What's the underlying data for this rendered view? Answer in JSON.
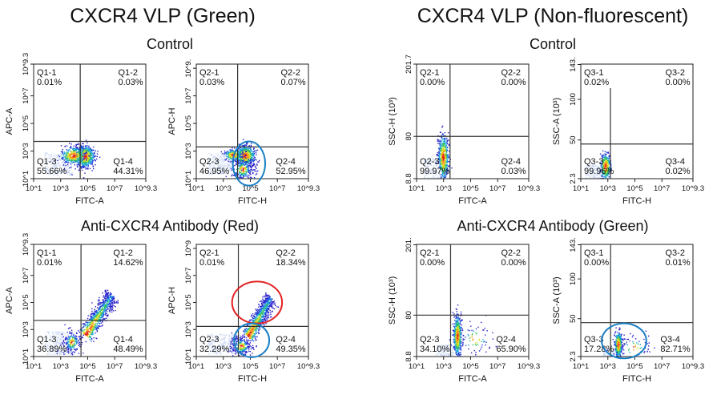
{
  "figure": {
    "left_title": "CXCR4 VLP (Green)",
    "right_title": "CXCR4 VLP (Non-fluorescent)",
    "row1_left_sub": "Control",
    "row1_right_sub": "Control",
    "row2_left_sub": "Anti-CXCR4 Antibody (Red)",
    "row2_right_sub": "Anti-CXCR4 Antibody (Green)"
  },
  "chart_data": [
    {
      "type": "scatter",
      "xlabel": "FITC-A",
      "ylabel": "APC-A",
      "xscale": "log",
      "yscale": "log",
      "xlim": [
        10,
        1995262315
      ],
      "ylim": [
        10,
        1995262315
      ],
      "x_ticks": [
        "10^1",
        "10^3",
        "10^5",
        "10^7",
        "10^9.3"
      ],
      "y_ticks": [
        "10^1",
        "10^3",
        "10^5",
        "10^7",
        "10^9.3"
      ],
      "x_gate": 28000,
      "y_gate": 5000,
      "quadrants": [
        {
          "label": "Q1-1",
          "pct": "0.01%"
        },
        {
          "label": "Q1-2",
          "pct": "0.03%"
        },
        {
          "label": "Q1-3",
          "pct": "55.66%"
        },
        {
          "label": "Q1-4",
          "pct": "44.31%"
        }
      ],
      "annotations": []
    },
    {
      "type": "scatter",
      "xlabel": "FITC-H",
      "ylabel": "APC-H",
      "xscale": "log",
      "yscale": "log",
      "xlim": [
        10,
        1995262315
      ],
      "ylim": [
        10,
        1995262315
      ],
      "x_ticks": [
        "10^1",
        "10^3",
        "10^5",
        "10^7",
        "10^9.3"
      ],
      "y_ticks": [
        "10^1",
        "10^3",
        "10^5",
        "10^7",
        "10^9."
      ],
      "x_gate": 11500,
      "y_gate": 2000,
      "quadrants": [
        {
          "label": "Q2-1",
          "pct": "0.03%"
        },
        {
          "label": "Q2-2",
          "pct": "0.07%"
        },
        {
          "label": "Q2-3",
          "pct": "46.95%"
        },
        {
          "label": "Q2-4",
          "pct": "52.95%"
        }
      ],
      "annotations": [
        {
          "shape": "ellipse",
          "color": "#1a7fc4",
          "cx_log": 4.9,
          "cy_log": 2.1,
          "rx_dec": 1.2,
          "ry_dec": 1.6
        }
      ]
    },
    {
      "type": "scatter",
      "xlabel": "FITC-A",
      "ylabel": "SSC-H  (10³)",
      "xscale": "log",
      "yscale": "linear",
      "xlim": [
        10,
        1995262315
      ],
      "ylim": [
        8.8,
        201.7
      ],
      "x_ticks": [
        "10^1",
        "10^3",
        "10^5",
        "10^7",
        "10^9.3"
      ],
      "y_ticks": [
        "8.8",
        "80",
        "201.7"
      ],
      "x_gate": 3000,
      "y_gate": 80,
      "quadrants": [
        {
          "label": "Q2-1",
          "pct": "0.00%"
        },
        {
          "label": "Q2-2",
          "pct": "0.00%"
        },
        {
          "label": "Q2-3",
          "pct": "99.97%"
        },
        {
          "label": "Q2-4",
          "pct": "0.03%"
        }
      ],
      "annotations": []
    },
    {
      "type": "scatter",
      "xlabel": "FITC-H",
      "ylabel": "SSC-A  (10³)",
      "xscale": "log",
      "yscale": "linear",
      "xlim": [
        10,
        1995262315
      ],
      "ylim": [
        2.3,
        143.5
      ],
      "x_ticks": [
        "10^1",
        "10^3",
        "10^5",
        "10^7",
        "10^9.3"
      ],
      "y_ticks": [
        "2.3",
        "50",
        "100",
        "143."
      ],
      "x_gate": 1550,
      "y_gate": 45,
      "quadrants": [
        {
          "label": "Q3-1",
          "pct": "0.02%"
        },
        {
          "label": "Q3-2",
          "pct": "0.00%"
        },
        {
          "label": "Q3-3",
          "pct": "99.96%"
        },
        {
          "label": "Q3-4",
          "pct": "0.02%"
        }
      ],
      "annotations": []
    },
    {
      "type": "scatter",
      "xlabel": "FITC-A",
      "ylabel": "APC-A",
      "xscale": "log",
      "yscale": "log",
      "xlim": [
        10,
        1995262315
      ],
      "ylim": [
        10,
        1995262315
      ],
      "x_ticks": [
        "10^1",
        "10^3",
        "10^5",
        "10^7",
        "10^9.3"
      ],
      "y_ticks": [
        "10^1",
        "10^3",
        "10^5",
        "10^7",
        "10^9.3"
      ],
      "x_gate": 32000,
      "y_gate": 4700,
      "quadrants": [
        {
          "label": "Q1-1",
          "pct": "0.01%"
        },
        {
          "label": "Q1-2",
          "pct": "14.62%"
        },
        {
          "label": "Q1-3",
          "pct": "36.89%"
        },
        {
          "label": "Q1-4",
          "pct": "48.49%"
        }
      ],
      "annotations": []
    },
    {
      "type": "scatter",
      "xlabel": "FITC-H",
      "ylabel": "APC-H",
      "xscale": "log",
      "yscale": "log",
      "xlim": [
        10,
        1995262315
      ],
      "ylim": [
        10,
        1995262315
      ],
      "x_ticks": [
        "10^1",
        "10^3",
        "10^5",
        "10^7",
        "10^9.3"
      ],
      "y_ticks": [
        "10^1",
        "10^3",
        "10^5",
        "10^7",
        "10^9"
      ],
      "x_gate": 13000,
      "y_gate": 1700,
      "quadrants": [
        {
          "label": "Q2-1",
          "pct": "0.01%"
        },
        {
          "label": "Q2-2",
          "pct": "18.34%"
        },
        {
          "label": "Q2-3",
          "pct": "32.29%"
        },
        {
          "label": "Q2-4",
          "pct": "49.35%"
        }
      ],
      "annotations": [
        {
          "shape": "ellipse",
          "color": "#e32222",
          "cx_log": 5.5,
          "cy_log": 5.0,
          "rx_dec": 1.85,
          "ry_dec": 1.55
        },
        {
          "shape": "ellipse",
          "color": "#1a7fc4",
          "cx_log": 5.1,
          "cy_log": 2.2,
          "rx_dec": 1.3,
          "ry_dec": 1.25
        }
      ]
    },
    {
      "type": "scatter",
      "xlabel": "FITC-A",
      "ylabel": "SSC-H  (10³)",
      "xscale": "log",
      "yscale": "linear",
      "xlim": [
        10,
        1995262315
      ],
      "ylim": [
        8.8,
        201.7
      ],
      "x_ticks": [
        "10^1",
        "10^3",
        "10^5",
        "10^7",
        "10^9.3"
      ],
      "y_ticks": [
        "8.8",
        "80",
        "201."
      ],
      "x_gate": 3300,
      "y_gate": 80,
      "quadrants": [
        {
          "label": "Q2-1",
          "pct": "0.00%"
        },
        {
          "label": "Q2-2",
          "pct": "0.00%"
        },
        {
          "label": "Q2-3",
          "pct": "34.10%"
        },
        {
          "label": "Q2-4",
          "pct": "65.90%"
        }
      ],
      "annotations": []
    },
    {
      "type": "scatter",
      "xlabel": "FITC-H",
      "ylabel": "SSC-A  (10³)",
      "xscale": "log",
      "yscale": "linear",
      "xlim": [
        10,
        1995262315
      ],
      "ylim": [
        2.3,
        143.5
      ],
      "x_ticks": [
        "10^1",
        "10^3",
        "10^5",
        "10^7",
        "10^9.3"
      ],
      "y_ticks": [
        "2.3",
        "50",
        "100",
        "143."
      ],
      "x_gate": 1600,
      "y_gate": 45,
      "quadrants": [
        {
          "label": "Q3-1",
          "pct": "0.00%"
        },
        {
          "label": "Q3-2",
          "pct": "0.01%"
        },
        {
          "label": "Q3-3",
          "pct": "17.28%"
        },
        {
          "label": "Q3-4",
          "pct": "82.71%"
        }
      ],
      "annotations": [
        {
          "shape": "ellipse",
          "color": "#1a7fc4",
          "cx_log": 4.2,
          "cy_lin": 22,
          "rx_dec": 1.65,
          "ry_lin": 22
        }
      ]
    }
  ]
}
